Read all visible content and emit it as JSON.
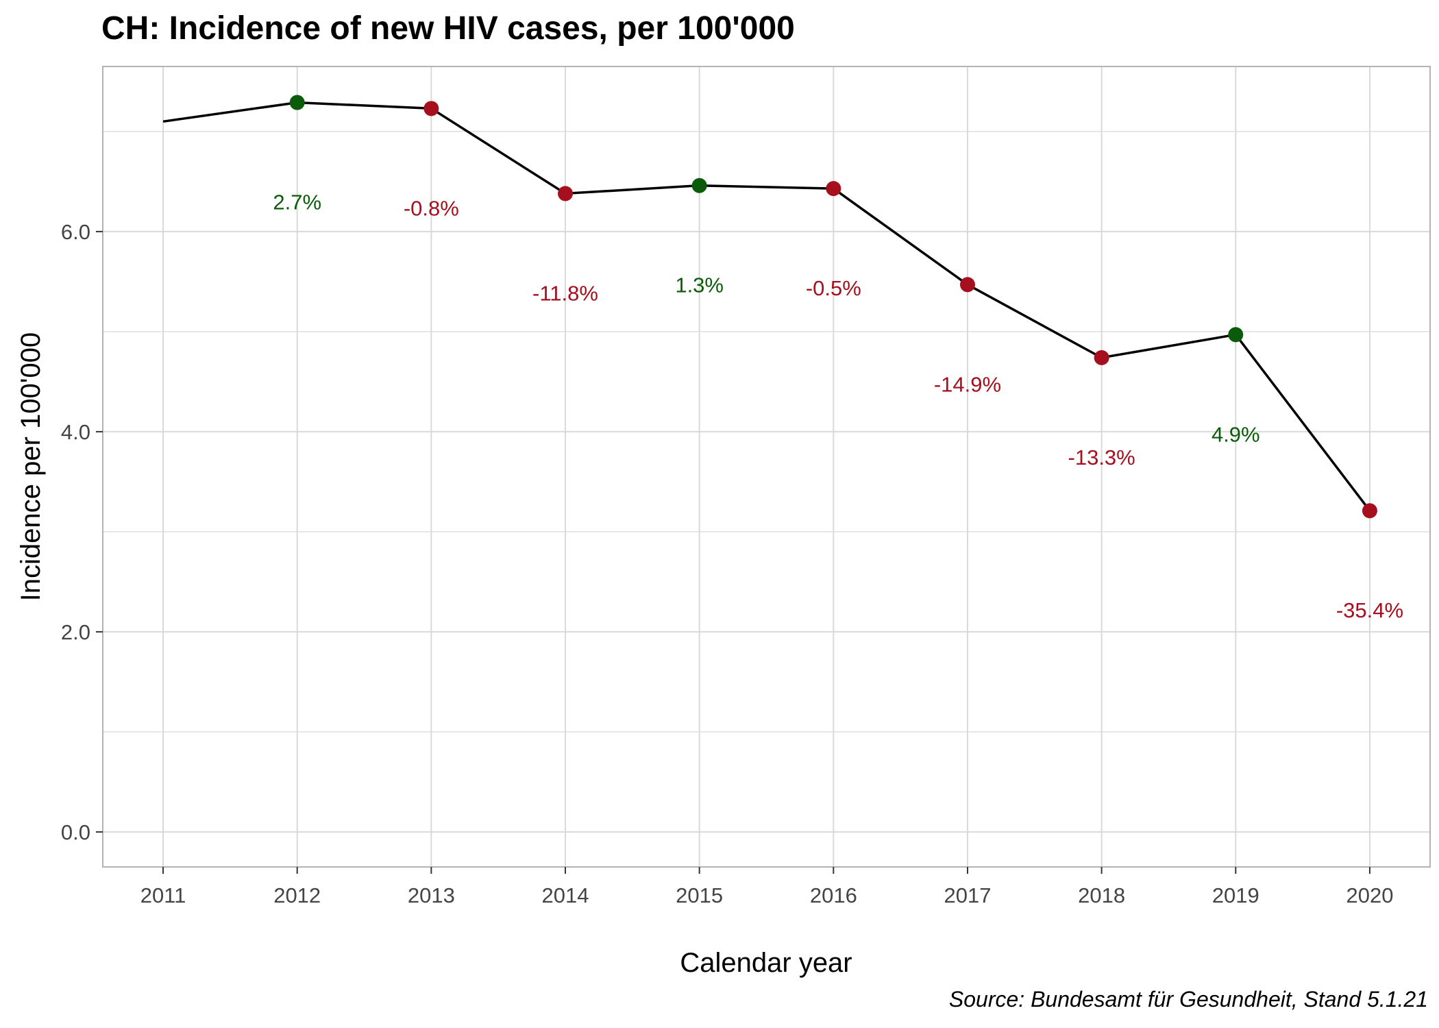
{
  "chart_data": {
    "type": "line",
    "title": "CH: Incidence of new HIV cases, per 100'000",
    "xlabel": "Calendar year",
    "ylabel": "Incidence per 100'000",
    "source": "Source: Bundesamt für Gesundheit, Stand 5.1.21",
    "x": [
      2011,
      2012,
      2013,
      2014,
      2015,
      2016,
      2017,
      2018,
      2019,
      2020
    ],
    "y": [
      7.1,
      7.29,
      7.23,
      6.38,
      6.46,
      6.43,
      5.47,
      4.74,
      4.97,
      3.21
    ],
    "change_labels": [
      null,
      "2.7%",
      "-0.8%",
      "-11.8%",
      "1.3%",
      "-0.5%",
      "-14.9%",
      "-13.3%",
      "4.9%",
      "-35.4%"
    ],
    "xlim": [
      2010.55,
      2020.45
    ],
    "ylim": [
      -0.35,
      7.65
    ],
    "y_ticks": [
      0,
      2,
      4,
      6
    ],
    "y_tick_labels": [
      "0.0",
      "2.0",
      "4.0",
      "6.0"
    ],
    "x_tick_labels": [
      "2011",
      "2012",
      "2013",
      "2014",
      "2015",
      "2016",
      "2017",
      "2018",
      "2019",
      "2020"
    ],
    "grid": true,
    "colors": {
      "line": "#000000",
      "increase": "#0a5c0a",
      "decrease": "#a50f1e",
      "grid": "#d9d9d9",
      "panel_border": "#b3b3b3"
    }
  }
}
